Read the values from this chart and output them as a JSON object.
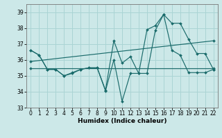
{
  "xlabel": "Humidex (Indice chaleur)",
  "xlim": [
    -0.5,
    22.5
  ],
  "ylim": [
    33,
    39.5
  ],
  "yticks": [
    33,
    34,
    35,
    36,
    37,
    38,
    39
  ],
  "xticks": [
    0,
    1,
    2,
    3,
    4,
    5,
    6,
    7,
    8,
    9,
    10,
    11,
    12,
    13,
    14,
    15,
    16,
    17,
    18,
    19,
    20,
    21,
    22
  ],
  "bg_color": "#cce8e8",
  "grid_color": "#aad4d4",
  "line_color": "#1a6b6b",
  "lines": [
    {
      "x": [
        0,
        1,
        2,
        3,
        4,
        5,
        6,
        7,
        8,
        9,
        10,
        11,
        12,
        13,
        14,
        15,
        16,
        17,
        18,
        19,
        20,
        21,
        22
      ],
      "y": [
        36.6,
        36.3,
        35.4,
        35.4,
        35.0,
        35.2,
        35.4,
        35.5,
        35.5,
        34.1,
        37.2,
        35.8,
        36.2,
        35.15,
        37.9,
        38.15,
        38.85,
        38.3,
        38.3,
        37.3,
        36.4,
        36.4,
        35.4
      ]
    },
    {
      "x": [
        0,
        1,
        2,
        3,
        4,
        5,
        6,
        7,
        8,
        9,
        10,
        11,
        12,
        13,
        14,
        15,
        16,
        17,
        18,
        19,
        20,
        21,
        22
      ],
      "y": [
        36.6,
        36.3,
        35.4,
        35.4,
        35.0,
        35.15,
        35.4,
        35.5,
        35.5,
        34.05,
        36.0,
        33.4,
        35.15,
        35.15,
        35.15,
        37.85,
        38.85,
        36.6,
        36.3,
        35.2,
        35.2,
        35.2,
        35.4
      ]
    },
    {
      "x": [
        0,
        22
      ],
      "y": [
        35.9,
        37.2
      ]
    },
    {
      "x": [
        0,
        22
      ],
      "y": [
        35.45,
        35.45
      ]
    }
  ]
}
